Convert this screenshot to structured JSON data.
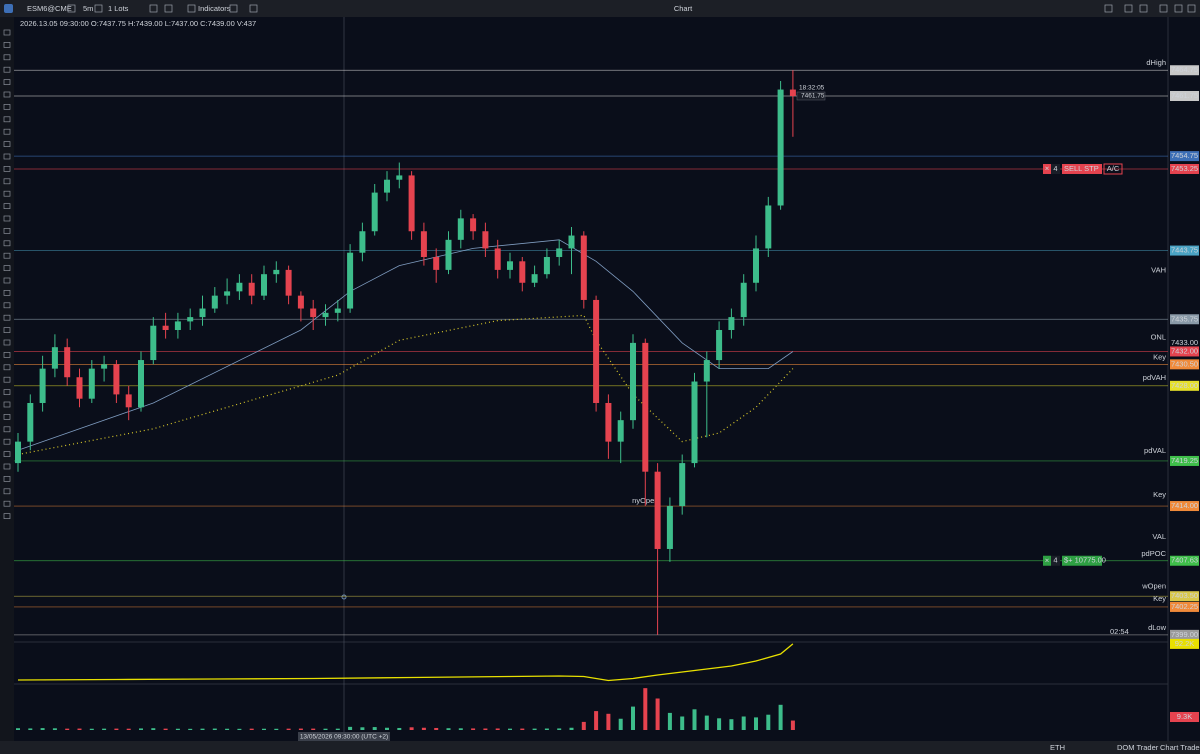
{
  "window": {
    "title": "Chart",
    "symbol": "ESM6@CME",
    "timeframe": "5m",
    "quantity": "1 Lots",
    "indicators": "Indicators"
  },
  "status_bar": {
    "session": "ETH",
    "tabs": [
      "DOM Trader",
      "Chart Trader"
    ]
  },
  "chart_data": {
    "type": "candlestick",
    "header": "2026.13.05 09:30:00 O:7437.75 H:7439.00 L:7437.00 C:7439.00 V:437",
    "crosshair_time": "13/05/2026 09:30:00 (UTC +2)",
    "up_color": "#3dbd8b",
    "down_color": "#e5434f",
    "open": [
      7419,
      7421.5,
      7426,
      7430,
      7432.5,
      7429,
      7426.5,
      7430,
      7430.5,
      7427,
      7425.5,
      7431,
      7435,
      7434.5,
      7435.5,
      7436,
      7437,
      7438.5,
      7439,
      7440,
      7438.5,
      7441,
      7441.5,
      7438.5,
      7437,
      7436,
      7436.5,
      7437,
      7443.5,
      7446,
      7450.5,
      7452,
      7452.5,
      7446,
      7443,
      7441.5,
      7445,
      7447.5,
      7446,
      7444,
      7441.5,
      7442.5,
      7440,
      7441,
      7443,
      7444,
      7445.5,
      7438,
      7426,
      7421.5,
      7424,
      7433,
      7418,
      7409,
      7414,
      7419,
      7428.5,
      7431,
      7434.5,
      7436,
      7440,
      7444,
      7449,
      7462.5
    ],
    "high": [
      7422.5,
      7427,
      7431.5,
      7434,
      7433.5,
      7430,
      7431,
      7431.5,
      7431,
      7428,
      7432,
      7436,
      7436.5,
      7436.5,
      7437,
      7438.5,
      7439.5,
      7440.5,
      7441,
      7441,
      7442,
      7442.5,
      7442,
      7439,
      7438,
      7437.5,
      7438,
      7444.5,
      7447,
      7451.5,
      7453,
      7454,
      7453,
      7447,
      7444,
      7446,
      7448.5,
      7448,
      7447,
      7445,
      7443.5,
      7443,
      7442,
      7444,
      7445,
      7446.5,
      7446,
      7438.5,
      7427,
      7425,
      7434,
      7433.5,
      7419,
      7415,
      7420,
      7429.5,
      7432,
      7435.5,
      7437,
      7441,
      7445.5,
      7450,
      7463.5,
      7464.75
    ],
    "low": [
      7418,
      7420.5,
      7425,
      7429,
      7428,
      7425.5,
      7426,
      7428.5,
      7426,
      7424,
      7425,
      7430.5,
      7433.5,
      7433.5,
      7434.5,
      7435,
      7436.5,
      7437.5,
      7438,
      7437.5,
      7438,
      7440,
      7437.5,
      7435.5,
      7434.5,
      7435,
      7435.5,
      7436.5,
      7442.5,
      7445.5,
      7449.5,
      7451,
      7445,
      7442,
      7440,
      7441,
      7444,
      7445,
      7443,
      7440.5,
      7440.5,
      7439,
      7439.5,
      7440.5,
      7442,
      7441,
      7437,
      7425,
      7419.5,
      7419,
      7423,
      7414,
      7399,
      7407.5,
      7413,
      7418.5,
      7422,
      7430,
      7433.5,
      7435,
      7439,
      7443,
      7448.5,
      7457
    ],
    "close": [
      7421.5,
      7426,
      7430,
      7432.5,
      7429,
      7426.5,
      7430,
      7430.5,
      7427,
      7425.5,
      7431,
      7435,
      7434.5,
      7435.5,
      7436,
      7437,
      7438.5,
      7439,
      7440,
      7438.5,
      7441,
      7441.5,
      7438.5,
      7437,
      7436,
      7436.5,
      7437,
      7443.5,
      7446,
      7450.5,
      7452,
      7452.5,
      7446,
      7443,
      7441.5,
      7445,
      7447.5,
      7446,
      7444,
      7441.5,
      7442.5,
      7440,
      7441,
      7443,
      7444,
      7445.5,
      7438,
      7426,
      7421.5,
      7424,
      7433,
      7418,
      7409,
      7414,
      7419,
      7428.5,
      7431,
      7434.5,
      7436,
      7440,
      7444,
      7449,
      7462.5,
      7461.75
    ],
    "ylim": [
      7398.4,
      7470.6
    ],
    "yticks": [
      7464.75,
      7461.75,
      7454.75,
      7453.25,
      7443.75,
      7435.75,
      {
        "value": 7433,
        "label": "7433.00"
      },
      {
        "value": 7432,
        "label": "7432.00"
      },
      {
        "value": 7430.5,
        "label": "7430.50"
      },
      {
        "value": 7428,
        "label": "7428.00"
      },
      7419.25,
      {
        "value": 7414,
        "label": "7414.00"
      },
      7407.63,
      {
        "value": 7403.5,
        "label": "7403.50"
      },
      7402.25,
      {
        "value": 7399,
        "label": "7399.00"
      }
    ],
    "ytick_colors": [
      "#c8c8c8",
      "#c8c8c8",
      "#3d6fb6",
      "#e5434f",
      "#4aa3c4",
      "#8a9aa8",
      null,
      "#e5434f",
      "#f08a3a",
      "#e6e02a",
      "#3fbf4a",
      "#f08a3a",
      "#3fbf4a",
      "#d8c84a",
      "#f08a3a",
      "#9a9a9a"
    ],
    "annotations": [
      {
        "text": "dHigh",
        "price": 7465.6,
        "color": "#777777"
      },
      {
        "text": "VAH",
        "price": 7441.4,
        "color": "#dddddd"
      },
      {
        "text": "ONL",
        "price": 7433.6,
        "color": "#e04040"
      },
      {
        "text": "Key",
        "price": 7431.3,
        "color": "#e8863a"
      },
      {
        "text": "pdVAH",
        "price": 7428.9,
        "color": "#d9d92a"
      },
      {
        "text": "pdVAL",
        "price": 7420.4,
        "color": "#dddddd"
      },
      {
        "text": "Key",
        "price": 7415.3,
        "color": "#e8863a"
      },
      {
        "text": "VAL",
        "price": 7410.4,
        "color": "#dddddd"
      },
      {
        "text": "pdPOC",
        "price": 7408.4,
        "color": "#dddddd"
      },
      {
        "text": "wOpen",
        "price": 7404.6,
        "color": "#e0c020"
      },
      {
        "text": "Key",
        "price": 7403.2,
        "color": "#e8863a"
      },
      {
        "text": "dLow",
        "price": 7399.8,
        "color": "#777777"
      }
    ],
    "session_markers": [
      {
        "text": "nyOpen",
        "price": 7414.6,
        "index": 51,
        "color": "#5a8ad0"
      }
    ],
    "moving_average": {
      "color": "#7f9cc0",
      "index": [
        0,
        11,
        23,
        27,
        31,
        37,
        44,
        47,
        50,
        54,
        57,
        61,
        63
      ],
      "values": [
        7420.5,
        7426,
        7434.5,
        7439,
        7442,
        7444,
        7445,
        7442.5,
        7439,
        7433,
        7430,
        7430,
        7432
      ]
    },
    "vwap": {
      "color": "#d9c92a",
      "index": [
        0,
        11,
        26,
        31,
        39,
        46,
        47,
        50,
        54,
        57,
        60,
        63
      ],
      "values": [
        7420,
        7423,
        7429.25,
        7433.3,
        7435.6,
        7436.2,
        7433.3,
        7427,
        7421.5,
        7422.5,
        7425.5,
        7430
      ]
    },
    "orders": [
      {
        "quantity": "4",
        "label": "SELL STP",
        "tag": "A/C",
        "price": 7453.25,
        "color": "#e5434f"
      },
      {
        "quantity": "4",
        "label": "$+ 10775.00",
        "price": 7407.63,
        "color": "#2ea043"
      }
    ],
    "countdown": "18:32:05",
    "last_price": 7461.75,
    "bar_timer": "02:54",
    "cumulative": {
      "color": "#e8e000",
      "index": [
        0,
        8,
        16,
        24,
        32,
        40,
        44,
        46,
        48,
        50,
        52,
        54,
        56,
        58,
        60,
        62,
        63
      ],
      "values": [
        20,
        21,
        22,
        23,
        25,
        27,
        28,
        27,
        19,
        23,
        30,
        36,
        42,
        48,
        58,
        72,
        92.2
      ],
      "ylim": [
        0,
        100
      ],
      "label": "92.2K"
    },
    "volume": {
      "values": [
        400,
        350,
        420,
        380,
        300,
        320,
        280,
        300,
        310,
        290,
        350,
        400,
        300,
        280,
        260,
        300,
        320,
        280,
        260,
        300,
        280,
        270,
        300,
        320,
        310,
        290,
        300,
        700,
        600,
        650,
        500,
        450,
        600,
        500,
        450,
        400,
        380,
        350,
        330,
        340,
        300,
        320,
        310,
        330,
        350,
        500,
        1800,
        4200,
        3600,
        2500,
        5200,
        9300,
        7000,
        3800,
        3000,
        4600,
        3200,
        2600,
        2400,
        3000,
        2800,
        3400,
        5600,
        2100
      ],
      "ylim": [
        0,
        10000
      ],
      "label": "9.3K"
    }
  }
}
